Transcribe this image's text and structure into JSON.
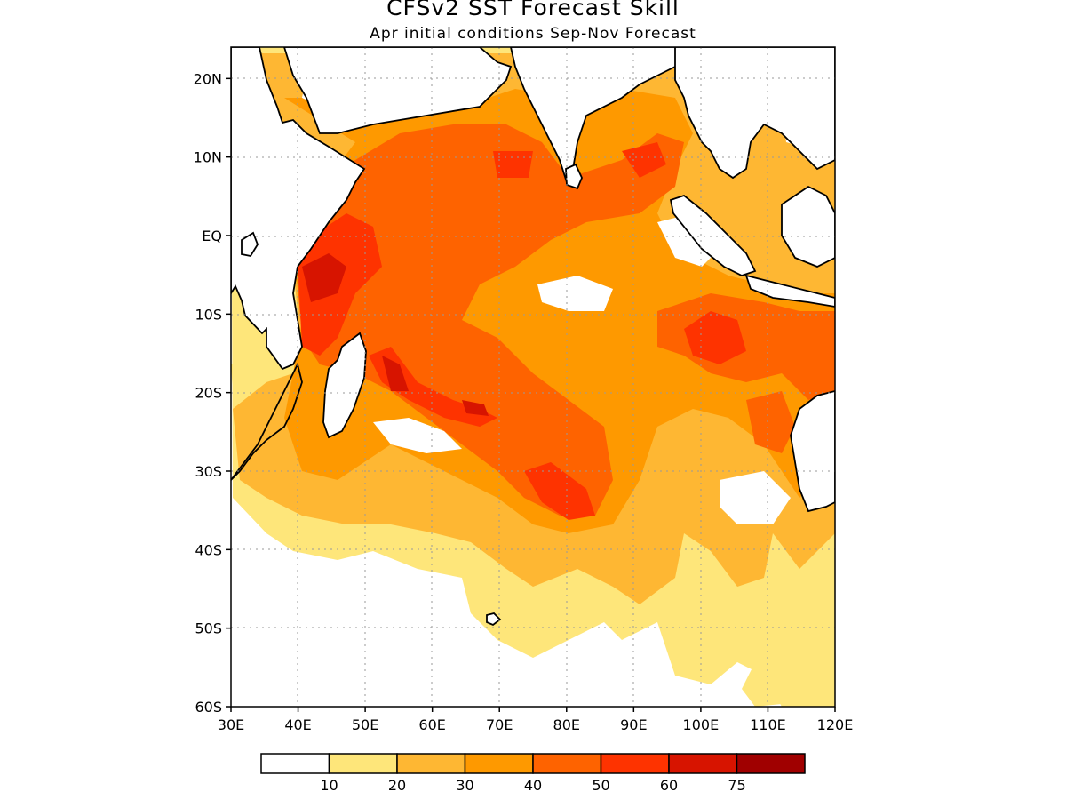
{
  "header": {
    "title": "CFSv2 SST Forecast Skill",
    "subtitle": "Apr initial conditions  Sep-Nov Forecast"
  },
  "map": {
    "region": "Indian Ocean",
    "lon_range": [
      30,
      120
    ],
    "lat_range": [
      -60,
      24
    ],
    "gridlines": "dotted",
    "lat_ticks": [
      {
        "lat": 20,
        "label": "20N"
      },
      {
        "lat": 10,
        "label": "10N"
      },
      {
        "lat": 0,
        "label": "EQ"
      },
      {
        "lat": -10,
        "label": "10S"
      },
      {
        "lat": -20,
        "label": "20S"
      },
      {
        "lat": -30,
        "label": "30S"
      },
      {
        "lat": -40,
        "label": "40S"
      },
      {
        "lat": -50,
        "label": "50S"
      },
      {
        "lat": -60,
        "label": "60S"
      }
    ],
    "lon_ticks": [
      {
        "lon": 30,
        "label": "30E"
      },
      {
        "lon": 40,
        "label": "40E"
      },
      {
        "lon": 50,
        "label": "50E"
      },
      {
        "lon": 60,
        "label": "60E"
      },
      {
        "lon": 70,
        "label": "70E"
      },
      {
        "lon": 80,
        "label": "80E"
      },
      {
        "lon": 90,
        "label": "90E"
      },
      {
        "lon": 100,
        "label": "100E"
      },
      {
        "lon": 110,
        "label": "110E"
      },
      {
        "lon": 120,
        "label": "120E"
      }
    ]
  },
  "colorbar": {
    "colors": [
      "#ffffff",
      "#fee67a",
      "#feb733",
      "#fe9900",
      "#fe6300",
      "#fe3300",
      "#d71400",
      "#a00000"
    ],
    "labels": [
      "10",
      "20",
      "30",
      "40",
      "50",
      "60",
      "75"
    ]
  }
}
